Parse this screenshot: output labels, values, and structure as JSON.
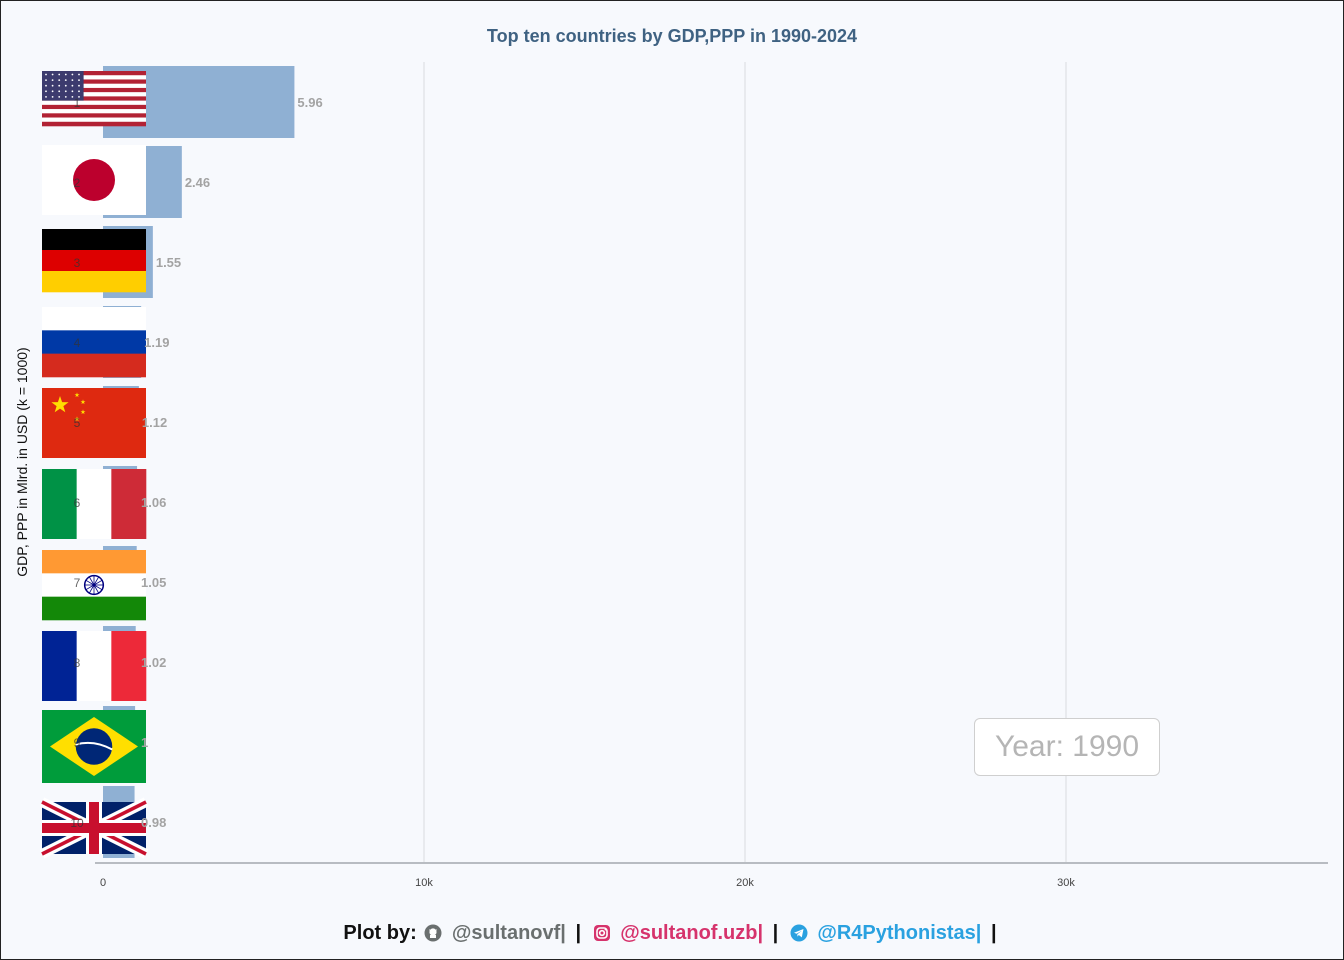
{
  "title": "Top ten countries by GDP,PPP in 1990-2024",
  "ylabel": "GDP, PPP in Mlrd. in USD (k = 1000)",
  "year_label": "Year: 1990",
  "footer": {
    "prefix": "Plot by:",
    "github": "@sultanovf|",
    "sep1": "|",
    "instagram": "@sultanof.uzb|",
    "sep2": "|",
    "telegram": "@R4Pythonistas|",
    "sep3": "|"
  },
  "colors": {
    "bar": "#8fb0d3",
    "value_label": "#a3a3a3",
    "title": "#3f6282",
    "grid": "#e3e6ea",
    "axis": "#b8bcc2"
  },
  "chart_data": {
    "type": "bar",
    "orientation": "horizontal",
    "title": "Top ten countries by GDP,PPP in 1990-2024",
    "xlabel": "",
    "ylabel": "GDP, PPP in Mlrd. in USD (k = 1000)",
    "xlim": [
      0,
      38200
    ],
    "xticks": [
      0,
      10000,
      20000,
      30000
    ],
    "xtick_labels": [
      "0",
      "10k",
      "20k",
      "30k"
    ],
    "grid": true,
    "categories": [
      "1",
      "2",
      "3",
      "4",
      "5",
      "6",
      "7",
      "8",
      "9",
      "10"
    ],
    "countries": [
      "United States",
      "Japan",
      "Germany",
      "Russia",
      "China",
      "Italy",
      "India",
      "France",
      "Brazil",
      "United Kingdom"
    ],
    "flags": [
      "us-flag",
      "japan-flag",
      "germany-flag",
      "russia-flag",
      "china-flag",
      "italy-flag",
      "india-flag",
      "france-flag",
      "brazil-flag",
      "uk-flag"
    ],
    "values": [
      5963,
      2456,
      1553,
      1189,
      1118,
      1061,
      1050,
      1019,
      1000,
      983
    ],
    "value_labels": [
      "5.96",
      "2.46",
      "1.55",
      "1.19",
      "1.12",
      "1.06",
      "1.05",
      "1.02",
      "1",
      "0.98"
    ]
  }
}
